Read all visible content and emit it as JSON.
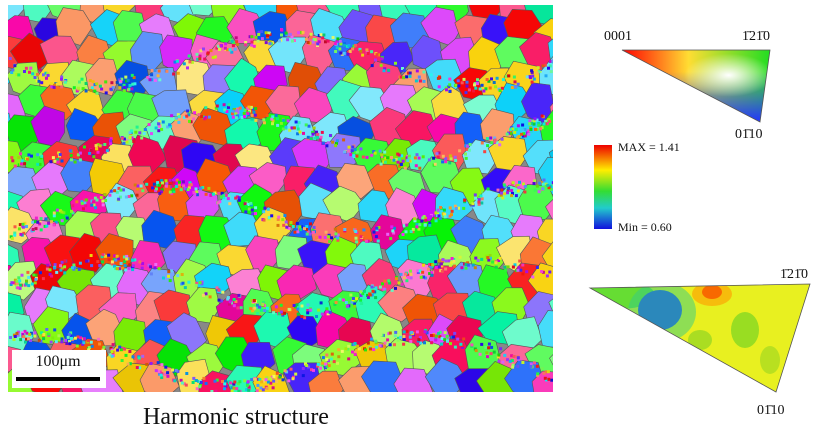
{
  "figure": {
    "map": {
      "scale_bar": "100μm"
    },
    "caption": "Harmonic structure",
    "ipf_key": {
      "corner_top_left": "0001",
      "corner_top_right": "1̄21̄0",
      "corner_bottom": "01̄10"
    },
    "color_scale": {
      "max_label": "MAX = 1.41",
      "min_label": "Min = 0.60"
    },
    "texture_plot": {
      "corner_top_right": "1̄21̄0",
      "corner_bottom": "01̄10"
    }
  }
}
